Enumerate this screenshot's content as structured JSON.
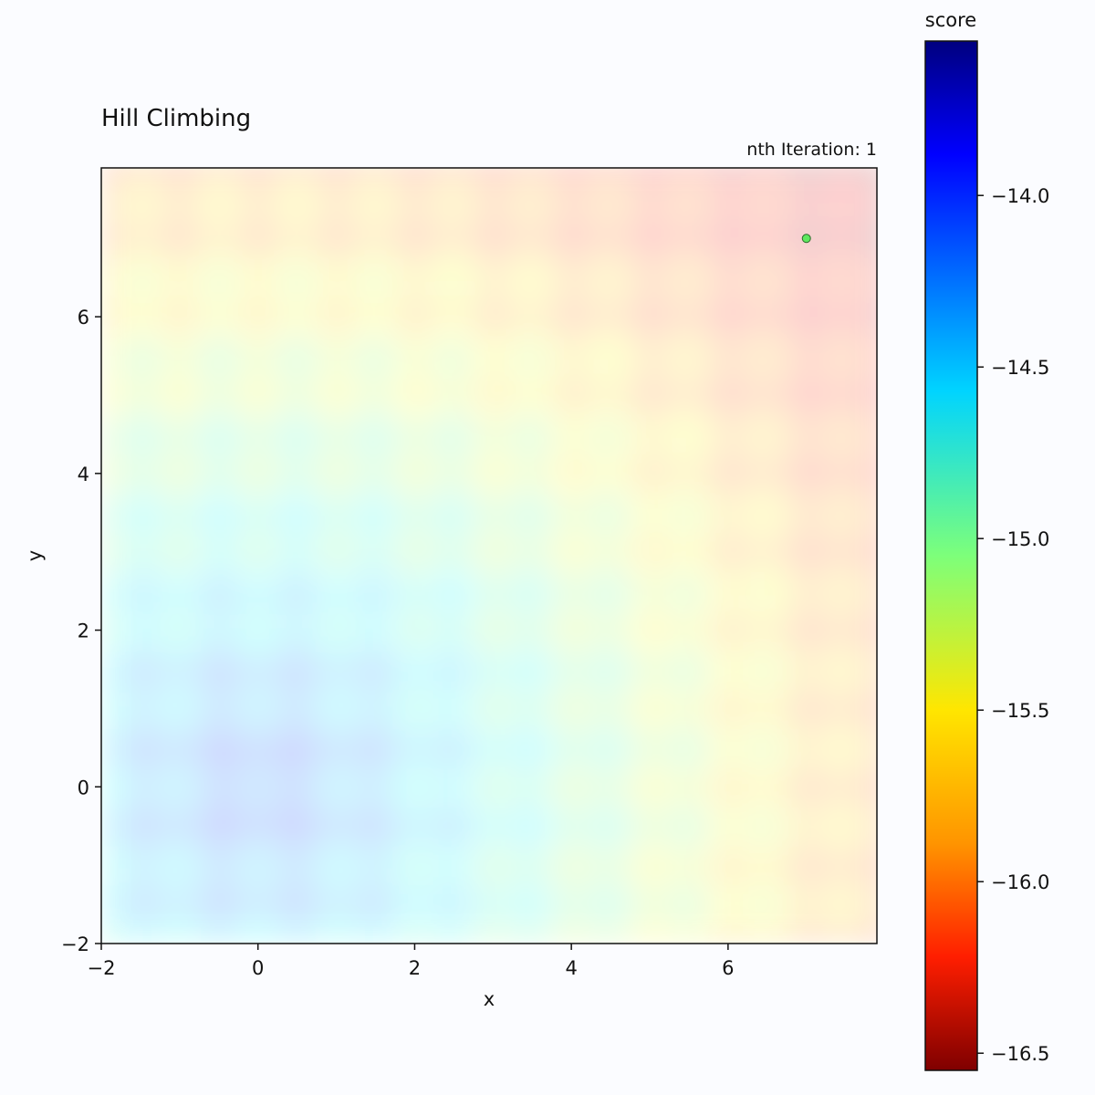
{
  "chart_data": {
    "type": "heatmap",
    "title": "Hill Climbing",
    "subtitle": "nth Iteration: 1",
    "xlabel": "x",
    "ylabel": "y",
    "xlim": [
      -2,
      7.9
    ],
    "ylim": [
      -2,
      7.9
    ],
    "xticks": [
      "−2",
      "0",
      "2",
      "4",
      "6"
    ],
    "xtick_values": [
      -2,
      0,
      2,
      4,
      6
    ],
    "yticks": [
      "−2",
      "0",
      "2",
      "4",
      "6"
    ],
    "ytick_values": [
      -2,
      0,
      2,
      4,
      6
    ],
    "colorbar": {
      "label": "score",
      "colormap": "jet_r",
      "range": [
        -16.55,
        -13.55
      ],
      "ticks": [
        "−14.0",
        "−14.5",
        "−15.0",
        "−15.5",
        "−16.0",
        "−16.5"
      ],
      "tick_values": [
        -14.0,
        -14.5,
        -15.0,
        -15.5,
        -16.0,
        -16.5
      ]
    },
    "surface": {
      "description_function": "score ≈ -(sqrt(x^2+y^2) + 1 - cos-modulated ripples), max near origin",
      "peak": {
        "x": 0,
        "y": 0
      },
      "opacity": 0.18
    },
    "points": [
      {
        "x": 7.0,
        "y": 7.0,
        "color": "#5fe85f"
      }
    ]
  }
}
